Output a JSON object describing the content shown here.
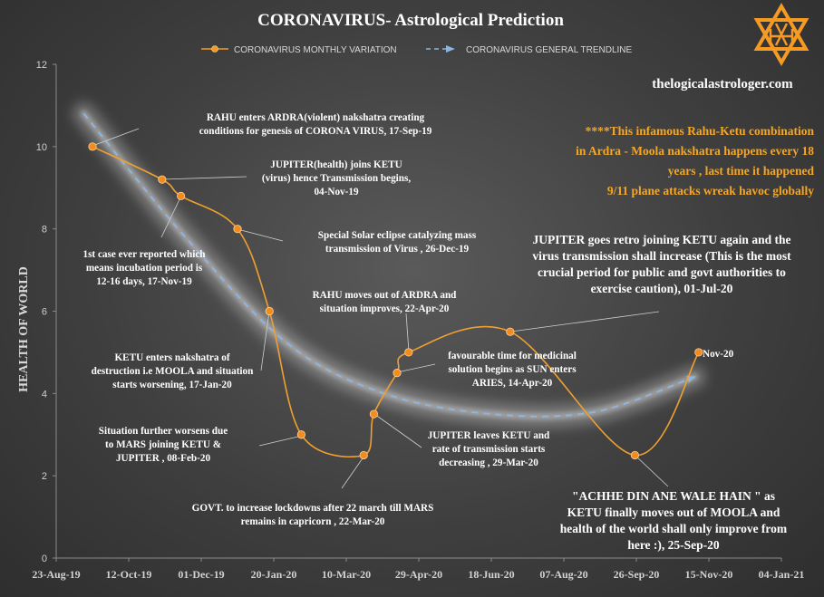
{
  "chart_data": {
    "type": "line",
    "title": "CORONAVIRUS- Astrological Prediction",
    "ylabel": "HEALTH OF WORLD",
    "xlabel": "",
    "ylim": [
      0,
      12
    ],
    "yticks": [
      0,
      2,
      4,
      6,
      8,
      10,
      12
    ],
    "xlim": [
      "2019-08-23",
      "2021-01-04"
    ],
    "xticks": [
      "23-Aug-19",
      "12-Oct-19",
      "01-Dec-19",
      "20-Jan-20",
      "10-Mar-20",
      "29-Apr-20",
      "18-Jun-20",
      "07-Aug-20",
      "26-Sep-20",
      "15-Nov-20",
      "04-Jan-21"
    ],
    "xtick_dates": [
      "2019-08-23",
      "2019-10-12",
      "2019-12-01",
      "2020-01-20",
      "2020-03-10",
      "2020-04-29",
      "2020-06-18",
      "2020-08-07",
      "2020-09-26",
      "2020-11-15",
      "2021-01-04"
    ],
    "grid": false,
    "legend": "top",
    "series": [
      {
        "name": "CORONAVIRUS MONTHLY VARIATION",
        "color": "#f59a23",
        "style": "smooth line with markers",
        "points": [
          {
            "x": "2019-09-17",
            "y": 10
          },
          {
            "x": "2019-11-04",
            "y": 9.2
          },
          {
            "x": "2019-11-17",
            "y": 8.8
          },
          {
            "x": "2019-12-26",
            "y": 8
          },
          {
            "x": "2020-01-17",
            "y": 6
          },
          {
            "x": "2020-02-08",
            "y": 3
          },
          {
            "x": "2020-03-22",
            "y": 2.5
          },
          {
            "x": "2020-03-29",
            "y": 3.5
          },
          {
            "x": "2020-04-14",
            "y": 4.5
          },
          {
            "x": "2020-04-22",
            "y": 5
          },
          {
            "x": "2020-07-01",
            "y": 5.5
          },
          {
            "x": "2020-09-25",
            "y": 2.5
          },
          {
            "x": "2020-11-08",
            "y": 5
          }
        ]
      },
      {
        "name": "CORONAVIRUS GENERAL TRENDLINE",
        "color": "#8fb4df",
        "style": "dashed arrow with glow",
        "points": [
          {
            "x": "2019-09-11",
            "y": 10.8
          },
          {
            "x": "2019-11-20",
            "y": 7.8
          },
          {
            "x": "2020-01-30",
            "y": 5.2
          },
          {
            "x": "2020-04-05",
            "y": 4.0
          },
          {
            "x": "2020-06-18",
            "y": 3.5
          },
          {
            "x": "2020-08-28",
            "y": 3.55
          },
          {
            "x": "2020-11-05",
            "y": 4.4
          }
        ]
      }
    ],
    "annotations": [
      {
        "lines": [
          "RAHU  enters ARDRA(violent)  nakshatra creating",
          "conditions for genesis of CORONA  VIRUS,  17-Sep-19"
        ]
      },
      {
        "lines": [
          "JUPITER(health)  joins KETU",
          "(virus) hence Transmission begins,",
          "04-Nov-19"
        ]
      },
      {
        "lines": [
          "1st case ever reported  which",
          "means incubation period is",
          "12-16 days,  17-Nov-19"
        ]
      },
      {
        "lines": [
          "Special Solar eclipse catalyzing mass",
          "transmission of Virus , 26-Dec-19"
        ]
      },
      {
        "lines": [
          "KETU  enters nakshatra of",
          "destruction  i.e MOOLA  and situation",
          "starts worsening, 17-Jan-20"
        ]
      },
      {
        "lines": [
          "Situation further worsens due",
          "to MARS joining KETU  &",
          "JUPITER   , 08-Feb-20"
        ]
      },
      {
        "lines": [
          "GOVT.  to increase lockdowns  after 22 march till MARS",
          "remains in capricorn  , 22-Mar-20"
        ]
      },
      {
        "lines": [
          "JUPITER  leaves KETU  and",
          "rate of transmission starts",
          "decreasing , 29-Mar-20"
        ]
      },
      {
        "lines": [
          "favourable  time for medicinal",
          "solution begins as SUN enters",
          "ARIES,  14-Apr-20"
        ]
      },
      {
        "lines": [
          "RAHU  moves out of ARDRA and",
          "situation improves,  22-Apr-20"
        ]
      },
      {
        "lines": [
          "JUPITER  goes retro joining  KETU again and the",
          "virus transmission  shall increase  (This is the most",
          "crucial period for public and govt authorities  to",
          "exercise caution), 01-Jul-20"
        ]
      },
      {
        "lines": [
          "\"ACHHE  DIN ANE WALE  HAIN \" as",
          "KETU finally moves out of MOOLA and",
          "health of the world  shall only improve from",
          "here :), 25-Sep-20"
        ]
      },
      {
        "lines": [
          "Nov-20"
        ]
      }
    ],
    "side_note": {
      "lines": [
        "****This infamous Rahu-Ketu  combination",
        "in Ardra - Moola nakshatra  happens  every 18",
        "years , last time it happened",
        "9/11 plane attacks wreak havoc globally"
      ],
      "color": "#f6a623"
    }
  },
  "header": {
    "site": "thelogicalastrologer.com"
  },
  "colors": {
    "background": "#404040",
    "line": "#f59a23",
    "trend": "#8fb4df",
    "text": "#ffffff",
    "note": "#f6a623"
  },
  "icons": {
    "logo": "star-of-david-logo-icon"
  }
}
